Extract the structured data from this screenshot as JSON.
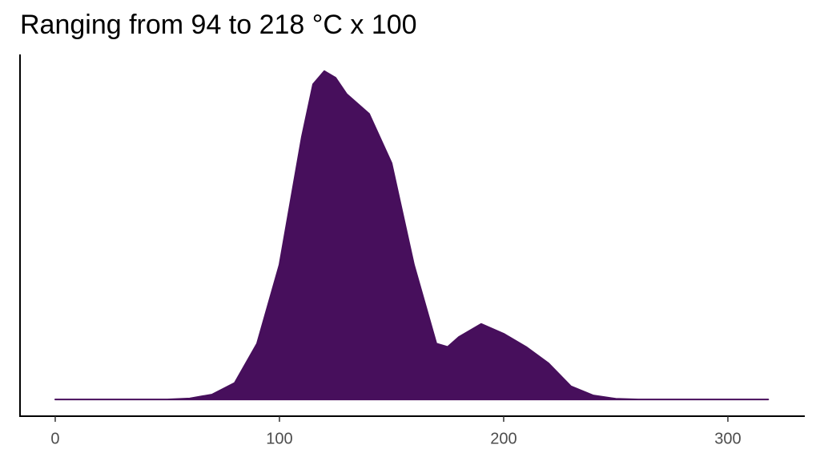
{
  "chart_data": {
    "type": "density",
    "title": "Ranging from 94 to 218 °C x 100",
    "x": [
      0,
      10,
      20,
      30,
      40,
      50,
      60,
      70,
      80,
      90,
      100,
      110,
      115,
      120,
      125,
      130,
      140,
      150,
      160,
      170,
      175,
      180,
      190,
      200,
      210,
      220,
      230,
      240,
      250,
      260,
      270,
      280,
      290,
      300,
      310,
      318
    ],
    "values": [
      0,
      0,
      0,
      0,
      0,
      0,
      0.003,
      0.015,
      0.05,
      0.17,
      0.41,
      0.8,
      0.96,
      1.0,
      0.98,
      0.93,
      0.87,
      0.72,
      0.41,
      0.17,
      0.16,
      0.19,
      0.23,
      0.2,
      0.16,
      0.11,
      0.04,
      0.012,
      0.002,
      0,
      0,
      0,
      0,
      0,
      0,
      0
    ],
    "color": "#470f5c",
    "xlim": [
      -15.7,
      334.3
    ],
    "ylim": [
      -0.051,
      1.051
    ],
    "xticks": [
      0,
      100,
      200,
      300
    ]
  }
}
